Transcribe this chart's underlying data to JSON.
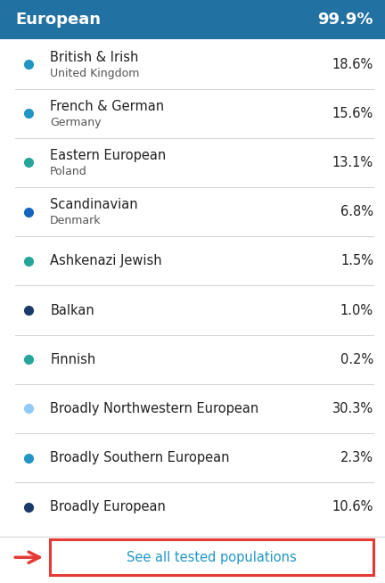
{
  "header_text": "European",
  "header_pct": "99.9%",
  "header_bg": "#2271a3",
  "header_text_color": "#ffffff",
  "bg_color": "#ffffff",
  "rows": [
    {
      "label": "British & Irish",
      "sublabel": "United Kingdom",
      "pct": "18.6%",
      "dot_color": "#2196c4",
      "has_divider": true
    },
    {
      "label": "French & German",
      "sublabel": "Germany",
      "pct": "15.6%",
      "dot_color": "#2196c4",
      "has_divider": true
    },
    {
      "label": "Eastern European",
      "sublabel": "Poland",
      "pct": "13.1%",
      "dot_color": "#26a69a",
      "has_divider": true
    },
    {
      "label": "Scandinavian",
      "sublabel": "Denmark",
      "pct": "6.8%",
      "dot_color": "#1565c0",
      "has_divider": true
    },
    {
      "label": "Ashkenazi Jewish",
      "sublabel": "",
      "pct": "1.5%",
      "dot_color": "#26a69a",
      "has_divider": true
    },
    {
      "label": "Balkan",
      "sublabel": "",
      "pct": "1.0%",
      "dot_color": "#1a3a6b",
      "has_divider": true
    },
    {
      "label": "Finnish",
      "sublabel": "",
      "pct": "0.2%",
      "dot_color": "#26a69a",
      "has_divider": true
    },
    {
      "label": "Broadly Northwestern European",
      "sublabel": "",
      "pct": "30.3%",
      "dot_color": "#90caf9",
      "has_divider": true
    },
    {
      "label": "Broadly Southern European",
      "sublabel": "",
      "pct": "2.3%",
      "dot_color": "#2196c4",
      "has_divider": true
    },
    {
      "label": "Broadly European",
      "sublabel": "",
      "pct": "10.6%",
      "dot_color": "#1a3a6b",
      "has_divider": false
    }
  ],
  "link_text": "See all tested populations",
  "link_color": "#2196c4",
  "link_box_color": "#e53935",
  "arrow_color": "#e53935",
  "divider_color": "#d0d0d0",
  "label_color": "#212121",
  "sublabel_color": "#555555",
  "pct_color": "#212121"
}
